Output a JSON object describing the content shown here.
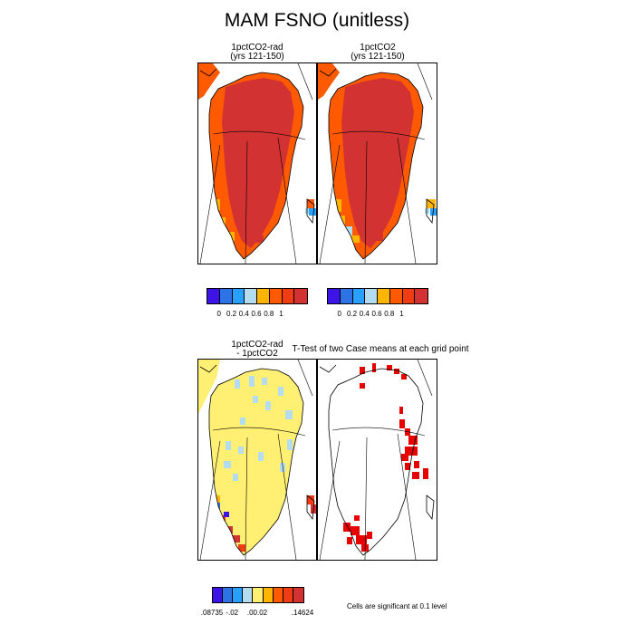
{
  "figure": {
    "title": "MAM FSNO (unitless)",
    "panels": [
      {
        "title_line1": "1pctCO2-rad",
        "title_line2": "(yrs 121-150)"
      },
      {
        "title_line1": "1pctCO2",
        "title_line2": "(yrs 121-150)"
      },
      {
        "title_line1": "1pctCO2-rad",
        "title_line2": "- 1pctCO2"
      },
      {
        "title_line1": "T-Test of two Case means at each grid point",
        "title_line2": ""
      }
    ],
    "legend_top": {
      "colors": [
        "#3c14e6",
        "#2d73e6",
        "#28a0ff",
        "#b4dcf0",
        "#ffb400",
        "#ff5a00",
        "#f03c14",
        "#d23232"
      ],
      "labels": [
        "0",
        "0.2",
        "0.4",
        "0.6",
        "0.8",
        "1"
      ]
    },
    "legend_bottom": {
      "colors": [
        "#3c14e6",
        "#2d73e6",
        "#28a0ff",
        "#b4dcf0",
        "#fff073",
        "#ffb400",
        "#ff5a00",
        "#f03c14",
        "#d23232"
      ],
      "labels": [
        ".08735",
        "-.02",
        ".00",
        ".02",
        ".14624"
      ]
    },
    "note": "Cells are significant at 0.1 level",
    "colors": {
      "sig_red": "#e60000",
      "diff_yellow": "#fff073",
      "diff_lightblue": "#b4dcf0",
      "snow_dark": "#d23232",
      "snow_orange": "#ff5a00"
    }
  }
}
